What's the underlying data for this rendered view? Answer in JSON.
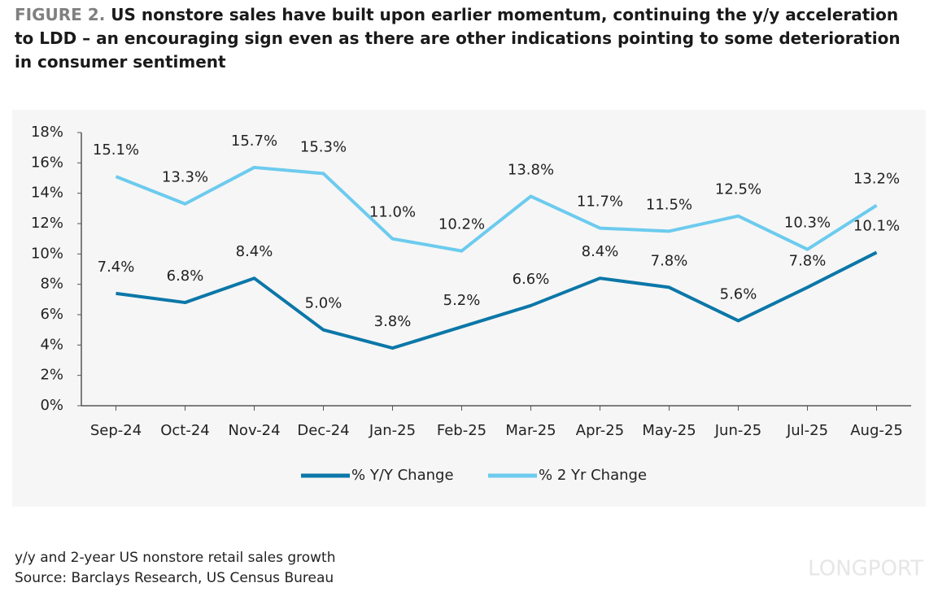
{
  "chart_data": {
    "type": "line",
    "figure_label": "FIGURE 2.",
    "title": "US nonstore sales have built upon earlier momentum, continuing the y/y acceleration to LDD – an encouraging sign even as there are other indications pointing to some deterioration in consumer sentiment",
    "categories": [
      "Sep-24",
      "Oct-24",
      "Nov-24",
      "Dec-24",
      "Jan-25",
      "Feb-25",
      "Mar-25",
      "Apr-25",
      "May-25",
      "Jun-25",
      "Jul-25",
      "Aug-25"
    ],
    "series": [
      {
        "name": "% Y/Y Change",
        "color": "#0b77a8",
        "values": [
          7.4,
          6.8,
          8.4,
          5.0,
          3.8,
          5.2,
          6.6,
          8.4,
          7.8,
          5.6,
          7.8,
          10.1
        ],
        "value_labels": [
          "7.4%",
          "6.8%",
          "8.4%",
          "5.0%",
          "3.8%",
          "5.2%",
          "6.6%",
          "8.4%",
          "7.8%",
          "5.6%",
          "7.8%",
          "10.1%"
        ]
      },
      {
        "name": "% 2 Yr Change",
        "color": "#6ccbee",
        "values": [
          15.1,
          13.3,
          15.7,
          15.3,
          11.0,
          10.2,
          13.8,
          11.7,
          11.5,
          12.5,
          10.3,
          13.2
        ],
        "value_labels": [
          "15.1%",
          "13.3%",
          "15.7%",
          "15.3%",
          "11.0%",
          "10.2%",
          "13.8%",
          "11.7%",
          "11.5%",
          "12.5%",
          "10.3%",
          "13.2%"
        ]
      }
    ],
    "ylim": [
      0,
      18
    ],
    "yticks": [
      {
        "value": 0,
        "label": "0%"
      },
      {
        "value": 2,
        "label": "2%"
      },
      {
        "value": 4,
        "label": "4%"
      },
      {
        "value": 6,
        "label": "6%"
      },
      {
        "value": 8,
        "label": "8%"
      },
      {
        "value": 10,
        "label": "10%"
      },
      {
        "value": 12,
        "label": "12%"
      },
      {
        "value": 14,
        "label": "14%"
      },
      {
        "value": 16,
        "label": "16%"
      },
      {
        "value": 18,
        "label": "18%"
      }
    ],
    "legend": "bottom",
    "footnote": "y/y and 2-year US nonstore retail sales growth",
    "source": "Source: Barclays Research, US Census Bureau",
    "watermark": "LONGPORT"
  }
}
